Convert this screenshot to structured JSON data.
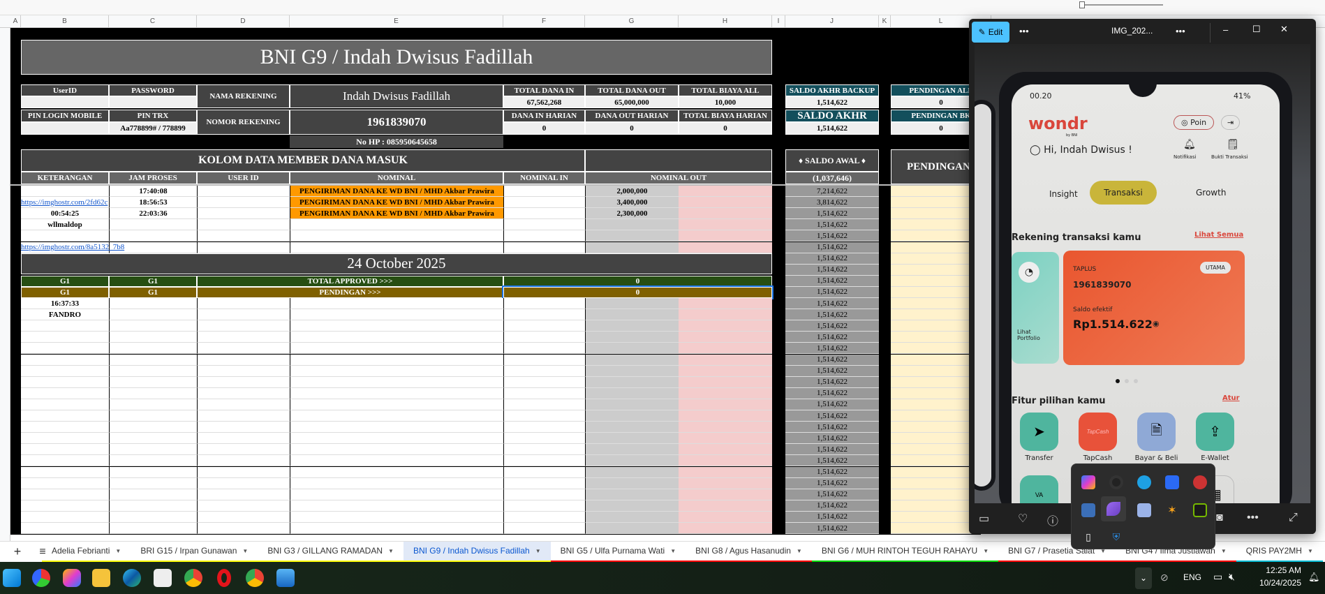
{
  "sheet": {
    "columns": [
      "A",
      "B",
      "C",
      "D",
      "E",
      "F",
      "G",
      "H",
      "I",
      "J",
      "K",
      "L"
    ],
    "title": "BNI G9 / Indah Dwisus Fadillah",
    "info": {
      "userid_label": "UserID",
      "password_label": "PASSWORD",
      "userid_value": "",
      "password_value": "",
      "pin_login_label": "PIN LOGIN MOBILE",
      "pin_trx_label": "PIN TRX",
      "pin_login_value": "",
      "pin_trx_value": "Aa778899# / 778899",
      "nama_label": "NAMA REKENING",
      "nama_value": "Indah Dwisus Fadillah",
      "nomor_label": "NOMOR REKENING",
      "nomor_value": "1961839070",
      "no_hp": "No HP : 085950645658",
      "total_dana_in_label": "TOTAL DANA IN",
      "total_dana_in": "67,562,268",
      "total_dana_out_label": "TOTAL DANA OUT",
      "total_dana_out": "65,000,000",
      "total_biaya_all_label": "TOTAL BIAYA ALL",
      "total_biaya_all": "10,000",
      "dana_in_harian_label": "DANA IN HARIAN",
      "dana_in_harian": "0",
      "dana_out_harian_label": "DANA OUT HARIAN",
      "dana_out_harian": "0",
      "total_biaya_harian_label": "TOTAL BIAYA HARIAN",
      "total_biaya_harian": "0",
      "saldo_backup_label": "SALDO AKHR BACKUP",
      "saldo_backup": "1,514,622",
      "saldo_akhr_label": "SALDO AKHR",
      "saldo_akhr": "1,514,622",
      "pending_all_label": "PENDINGAN ALL",
      "pending_all": "0",
      "pending_bk_label": "PENDINGAN BK",
      "pending_bk": "0"
    },
    "section_title": "KOLOM DATA MEMBER DANA MASUK",
    "saldo_awal_label": "♦ SALDO AWAL ♦",
    "saldo_awal": "(1,037,646)",
    "pendingan_label": "PENDINGAN",
    "headers": [
      "KETERANGAN",
      "JAM PROSES",
      "USER ID",
      "NOMINAL",
      "NOMINAL IN",
      "NOMINAL OUT"
    ],
    "rows": [
      {
        "b": "",
        "c": "17:40:08",
        "e": "PENGIRIMAN DANA KE WD BNI  / MHD Akbar Prawira",
        "g": "2,000,000",
        "j": "7,214,622"
      },
      {
        "b": "https://imghostr.com/2fd62c",
        "link": true,
        "c": "18:56:53",
        "e": "PENGIRIMAN DANA KE WD BNI  / MHD Akbar Prawira",
        "g": "3,400,000",
        "j": "3,814,622"
      },
      {
        "b": "00:54:25",
        "c": "22:03:36",
        "e": "PENGIRIMAN DANA KE WD BNI  / MHD Akbar Prawira",
        "g": "2,300,000",
        "j": "1,514,622"
      },
      {
        "b": "wllmaldop",
        "j": "1,514,622"
      },
      {
        "j": "1,514,622"
      },
      {
        "b": "https://imghostr.com/8a5132_7b8",
        "link": true,
        "j": "1,514,622"
      },
      {
        "type": "date",
        "j": "1,514,622"
      },
      {
        "type": "date2",
        "j": "1,514,622"
      },
      {
        "type": "approved",
        "j": "1,514,622"
      },
      {
        "type": "pending",
        "j": "1,514,622"
      },
      {
        "b": "16:37:33",
        "j": "1,514,622"
      },
      {
        "b": "FANDRO",
        "j": "1,514,622"
      },
      {
        "j": "1,514,622"
      },
      {
        "j": "1,514,622"
      },
      {
        "j": "1,514,622"
      },
      {
        "j": "1,514,622"
      },
      {
        "j": "1,514,622"
      },
      {
        "j": "1,514,622"
      },
      {
        "j": "1,514,622"
      },
      {
        "j": "1,514,622"
      },
      {
        "j": "1,514,622"
      },
      {
        "j": "1,514,622"
      },
      {
        "j": "1,514,622"
      },
      {
        "j": "1,514,622"
      },
      {
        "j": "1,514,622"
      },
      {
        "j": "1,514,622"
      },
      {
        "j": "1,514,622"
      },
      {
        "j": "1,514,622"
      },
      {
        "j": "1,514,622"
      },
      {
        "j": "1,514,622"
      },
      {
        "j": "1,514,622"
      }
    ],
    "date_banner": "24 October 2025",
    "approved": {
      "b": "G1",
      "c": "G1",
      "label": "TOTAL APPROVED >>>",
      "value": "0"
    },
    "pending": {
      "b": "G1",
      "c": "G1",
      "label": "PENDINGAN >>>",
      "value": "0"
    },
    "colors": {
      "orange": "#ff9900",
      "nominal_out_gray": "#cccccc",
      "pink": "#f4cccc",
      "saldo_gray": "#999999",
      "cream": "#fff2cc",
      "approved_green": "#274e13",
      "pending_brown": "#7f6000",
      "teal": "#134f5c"
    }
  },
  "tabs": {
    "add_icon": "+",
    "menu_icon": "≡",
    "items": [
      {
        "label": "Adelia Febrianti",
        "color": "#ffff00"
      },
      {
        "label": "BRI G15 / Irpan Gunawan",
        "color": "#ffff00"
      },
      {
        "label": "BNI G3 / GILLANG RAMADAN",
        "color": "#ffff00"
      },
      {
        "label": "BNI G9 / Indah Dwisus Fadillah",
        "color": "#ffff00",
        "active": true
      },
      {
        "label": "BNI G5 / Ulfa Purnama Wati",
        "color": "#ff0000"
      },
      {
        "label": "BNI G8 / Agus Hasanudin",
        "color": "#ff0000"
      },
      {
        "label": "BNI G6 / MUH RINTOH TEGUH RAHAYU",
        "color": "#00dd00"
      },
      {
        "label": "BNI G7 / Prasetia Salat",
        "color": "#ff0000"
      },
      {
        "label": "BNI G4 / Ilma Justiawan",
        "color": "#ff0000"
      },
      {
        "label": "QRIS PAY2MH",
        "color": "#00bcd4"
      }
    ]
  },
  "viewer": {
    "edit_label": "Edit",
    "more": "•••",
    "filename": "IMG_202...",
    "phone": {
      "time": "00.20",
      "battery": "41%",
      "logo": "wondr",
      "logo_sub": "by BNI",
      "poin": "Poin",
      "greeting": "Hi, Indah Dwisus !",
      "notifikasi": "Notifikasi",
      "bukti": "Bukti Transaksi",
      "tabs": [
        "Insight",
        "Transaksi",
        "Growth"
      ],
      "rekening_title": "Rekening transaksi kamu",
      "lihat_semua": "Lihat Semua",
      "portfolio": "Lihat Portfolio",
      "card_type": "TAPLUS",
      "card_badge": "UTAMA",
      "card_number": "1961839070",
      "saldo_label": "Saldo efektif",
      "saldo": "Rp1.514.622",
      "fitur_title": "Fitur pilihan kamu",
      "atur": "Atur",
      "features": [
        "Transfer",
        "TapCash",
        "Bayar & Beli",
        "E-Wallet"
      ],
      "tapcash_logo": "TapCash",
      "va": "VA"
    }
  },
  "taskbar": {
    "lang": "ENG",
    "time": "12:25 AM",
    "date": "10/24/2025"
  }
}
